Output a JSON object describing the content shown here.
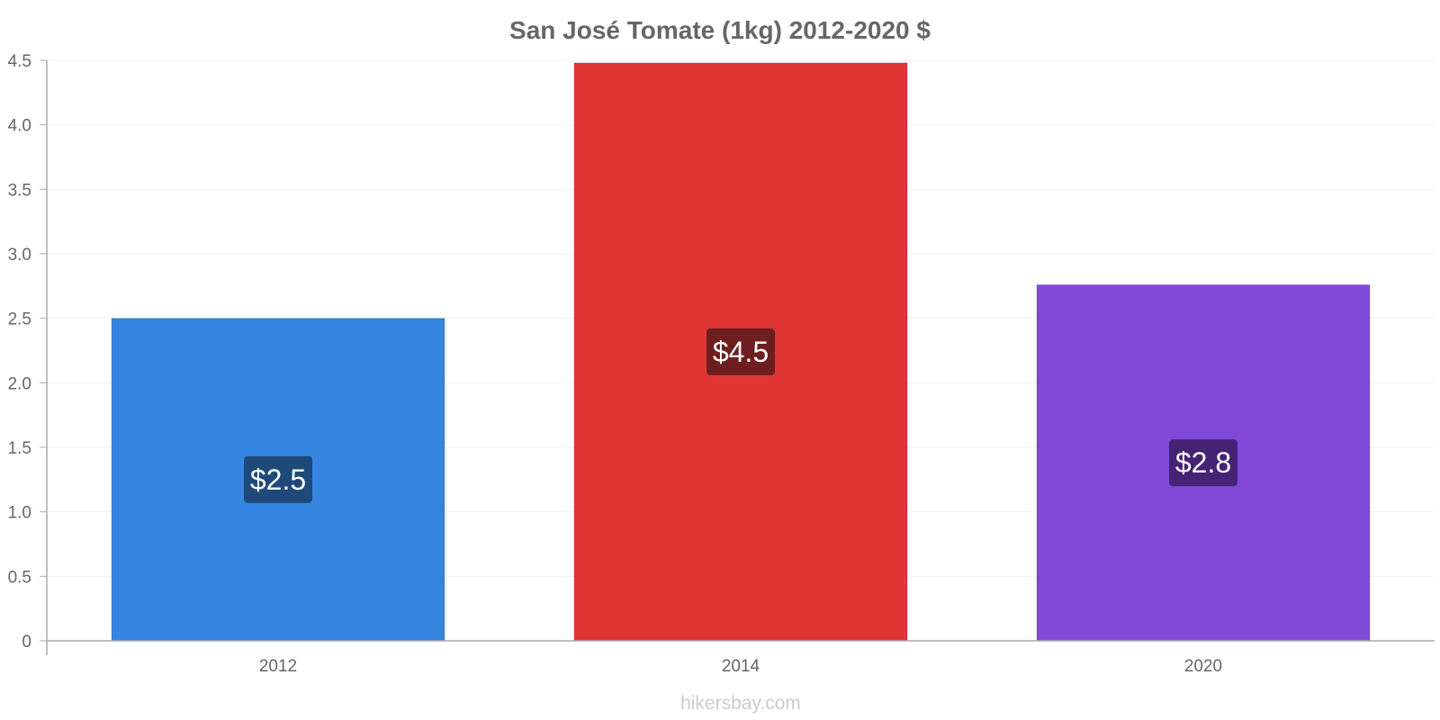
{
  "chart_data": {
    "type": "bar",
    "title": "San José Tomate (1kg) 2012-2020 $",
    "xlabel": "",
    "ylabel": "",
    "categories": [
      "2012",
      "2014",
      "2020"
    ],
    "values": [
      2.5,
      4.48,
      2.76
    ],
    "data_labels": [
      "$2.5",
      "$4.5",
      "$2.8"
    ],
    "ylim": [
      0,
      4.5
    ],
    "yticks": [
      0,
      0.5,
      1.0,
      1.5,
      2.0,
      2.5,
      3.0,
      3.5,
      4.0,
      4.5
    ],
    "ytick_labels": [
      "0",
      "0.5",
      "1.0",
      "1.5",
      "2.0",
      "2.5",
      "3.0",
      "3.5",
      "4.0",
      "4.5"
    ],
    "bar_colors": [
      "#3584e0",
      "#e03535",
      "#8149d8"
    ],
    "label_bg_colors": [
      "#1e4a7a",
      "#6e1e1e",
      "#452374"
    ],
    "grid": true,
    "legend": "none"
  },
  "footer": {
    "watermark": "hikersbay.com"
  }
}
